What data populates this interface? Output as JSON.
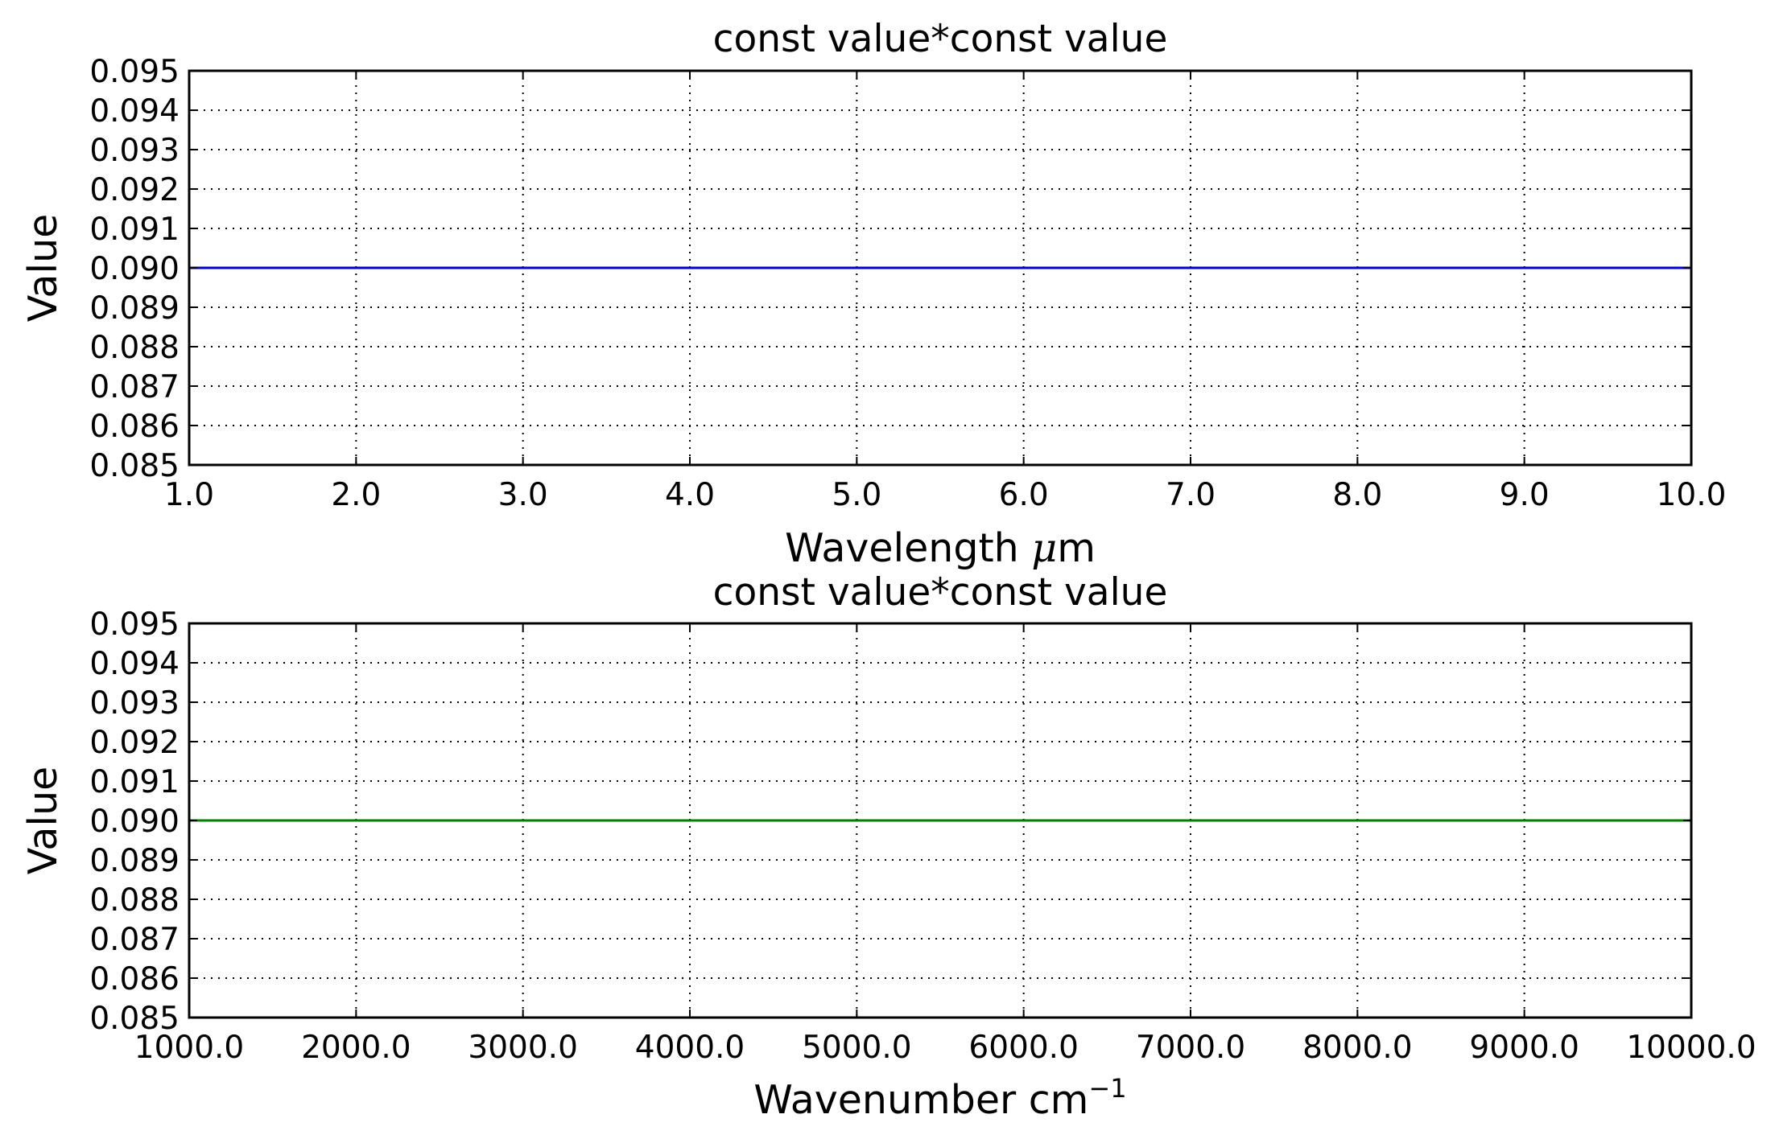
{
  "chart_data": [
    {
      "type": "line",
      "title": "const value*const value",
      "xlabel": "Wavelength",
      "xlabel_unit_math": "μ",
      "xlabel_unit_rest": "m",
      "ylabel": "Value",
      "xlim": [
        1.0,
        10.0
      ],
      "ylim": [
        0.085,
        0.095
      ],
      "xticks": [
        1.0,
        2.0,
        3.0,
        4.0,
        5.0,
        6.0,
        7.0,
        8.0,
        9.0,
        10.0
      ],
      "xtick_labels": [
        "1.0",
        "2.0",
        "3.0",
        "4.0",
        "5.0",
        "6.0",
        "7.0",
        "8.0",
        "9.0",
        "10.0"
      ],
      "yticks": [
        0.085,
        0.086,
        0.087,
        0.088,
        0.089,
        0.09,
        0.091,
        0.092,
        0.093,
        0.094,
        0.095
      ],
      "ytick_labels": [
        "0.085",
        "0.086",
        "0.087",
        "0.088",
        "0.089",
        "0.090",
        "0.091",
        "0.092",
        "0.093",
        "0.094",
        "0.095"
      ],
      "grid": true,
      "series": [
        {
          "color": "#0000c8",
          "x": [
            1.0,
            10.0
          ],
          "y": [
            0.09,
            0.09
          ]
        }
      ]
    },
    {
      "type": "line",
      "title": "const value*const value",
      "xlabel": "Wavenumber cm",
      "xlabel_superscript": "−1",
      "ylabel": "Value",
      "xlim": [
        1000.0,
        10000.0
      ],
      "ylim": [
        0.085,
        0.095
      ],
      "xticks": [
        1000.0,
        2000.0,
        3000.0,
        4000.0,
        5000.0,
        6000.0,
        7000.0,
        8000.0,
        9000.0,
        10000.0
      ],
      "xtick_labels": [
        "1000.0",
        "2000.0",
        "3000.0",
        "4000.0",
        "5000.0",
        "6000.0",
        "7000.0",
        "8000.0",
        "9000.0",
        "10000.0"
      ],
      "yticks": [
        0.085,
        0.086,
        0.087,
        0.088,
        0.089,
        0.09,
        0.091,
        0.092,
        0.093,
        0.094,
        0.095
      ],
      "ytick_labels": [
        "0.085",
        "0.086",
        "0.087",
        "0.088",
        "0.089",
        "0.090",
        "0.091",
        "0.092",
        "0.093",
        "0.094",
        "0.095"
      ],
      "grid": true,
      "series": [
        {
          "color": "#008000",
          "x": [
            1000.0,
            10000.0
          ],
          "y": [
            0.09,
            0.09
          ]
        }
      ]
    }
  ]
}
